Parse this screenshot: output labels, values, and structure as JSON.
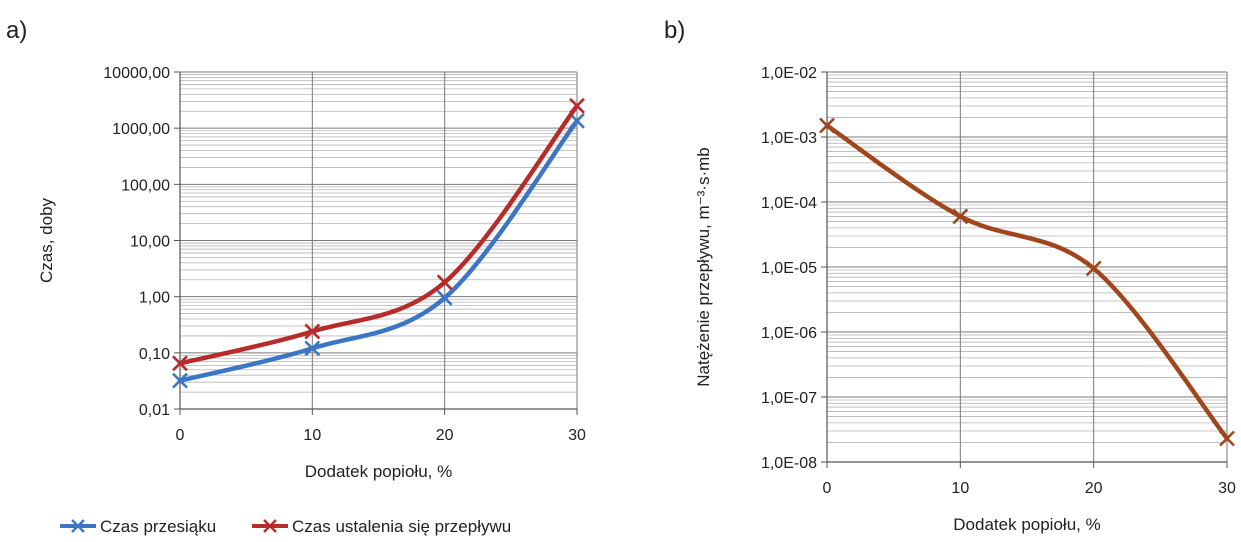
{
  "figure": {
    "panel_a_label": "a)",
    "panel_b_label": "b)"
  },
  "chart_data": [
    {
      "type": "line",
      "panel": "a)",
      "xlabel": "Dodatek popiołu, %",
      "ylabel": "Czas, doby",
      "y_scale": "log",
      "x": [
        0,
        10,
        20,
        30
      ],
      "xticks": [
        "0",
        "10",
        "20",
        "30"
      ],
      "ylim": [
        0.01,
        10000
      ],
      "yticks": [
        "0,01",
        "0,10",
        "1,00",
        "10,00",
        "100,00",
        "1000,00",
        "10000,00"
      ],
      "grid": true,
      "legend_position": "bottom",
      "series": [
        {
          "name": "Czas przesiąku",
          "color": "#3b75c4",
          "values": [
            0.032,
            0.12,
            0.95,
            1350
          ]
        },
        {
          "name": "Czas ustalenia się przepływu",
          "color": "#b72b2b",
          "values": [
            0.065,
            0.24,
            1.8,
            2500
          ]
        }
      ]
    },
    {
      "type": "line",
      "panel": "b)",
      "xlabel": "Dodatek popiołu, %",
      "ylabel": "Natężenie przepływu, m⁻³·s·mb",
      "y_scale": "log",
      "x": [
        0,
        10,
        20,
        30
      ],
      "xticks": [
        "0",
        "10",
        "20",
        "30"
      ],
      "ylim": [
        1e-08,
        0.01
      ],
      "yticks": [
        "1,0E-08",
        "1,0E-07",
        "1,0E-06",
        "1,0E-05",
        "1,0E-04",
        "1,0E-03",
        "1,0E-02"
      ],
      "grid": true,
      "legend_position": "none",
      "series": [
        {
          "color": "#a0461d",
          "values": [
            0.0015,
            6e-05,
            9.5e-06,
            2.3e-08
          ]
        }
      ]
    }
  ]
}
